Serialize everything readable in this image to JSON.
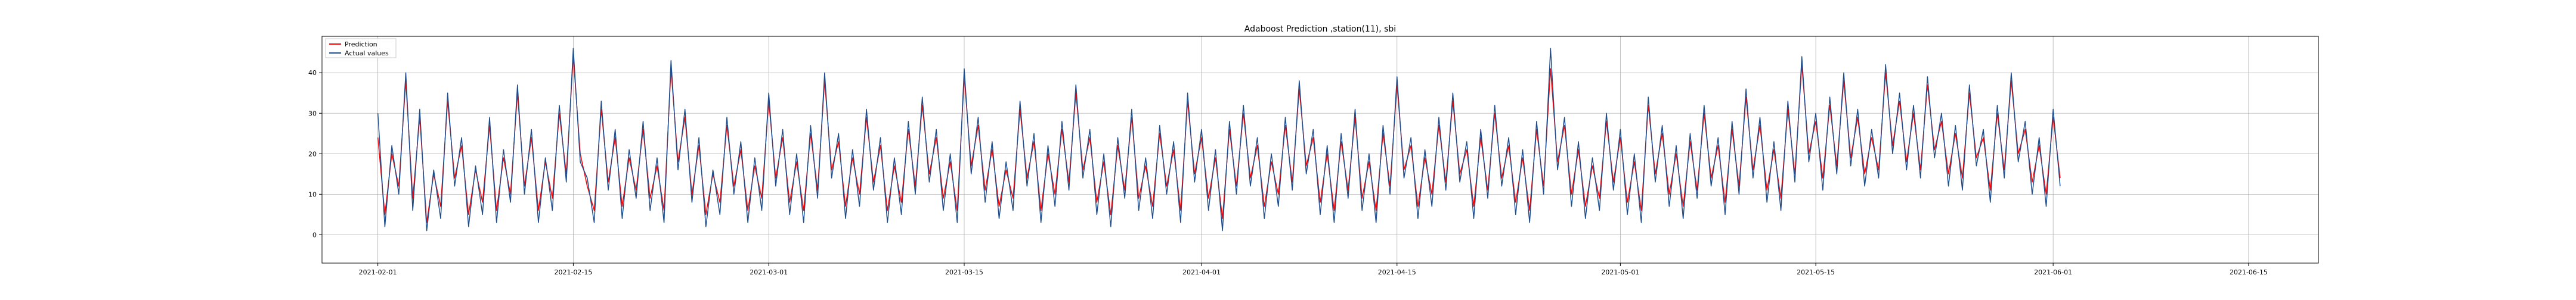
{
  "chart_data": {
    "type": "line",
    "title": "Adaboost Prediction ,station(11), sbi",
    "xlabel": "",
    "ylabel": "",
    "xlim": [
      "2021-01-28",
      "2021-06-20"
    ],
    "ylim": [
      -7,
      49
    ],
    "x_ticks": [
      "2021-02-01",
      "2021-02-15",
      "2021-03-01",
      "2021-03-15",
      "2021-04-01",
      "2021-04-15",
      "2021-05-01",
      "2021-05-15",
      "2021-06-01",
      "2021-06-15"
    ],
    "y_ticks": [
      0,
      10,
      20,
      30,
      40
    ],
    "grid": true,
    "legend_position": "top-left",
    "x_start": "2021-02-01",
    "x_step_days": 0.5,
    "series": [
      {
        "name": "Prediction",
        "color": "#ff0000",
        "values": [
          24,
          5,
          20,
          12,
          38,
          9,
          29,
          3,
          15,
          7,
          33,
          14,
          22,
          5,
          16,
          8,
          27,
          6,
          19,
          10,
          35,
          12,
          24,
          6,
          18,
          9,
          30,
          15,
          44,
          20,
          12,
          6,
          31,
          13,
          24,
          7,
          19,
          11,
          26,
          9,
          17,
          6,
          41,
          18,
          29,
          10,
          22,
          5,
          15,
          8,
          27,
          12,
          21,
          6,
          17,
          9,
          33,
          14,
          24,
          8,
          18,
          6,
          25,
          11,
          38,
          16,
          23,
          7,
          19,
          10,
          29,
          13,
          22,
          6,
          17,
          8,
          26,
          12,
          32,
          15,
          24,
          9,
          18,
          6,
          39,
          17,
          27,
          11,
          21,
          7,
          16,
          9,
          31,
          14,
          23,
          6,
          20,
          10,
          26,
          13,
          35,
          16,
          24,
          8,
          18,
          5,
          22,
          11,
          29,
          9,
          17,
          7,
          25,
          12,
          21,
          6,
          33,
          15,
          24,
          9,
          19,
          4,
          26,
          12,
          30,
          14,
          22,
          7,
          18,
          10,
          27,
          13,
          36,
          17,
          24,
          8,
          20,
          6,
          23,
          11,
          29,
          9,
          18,
          6,
          25,
          12,
          37,
          16,
          22,
          7,
          19,
          10,
          27,
          13,
          33,
          15,
          21,
          7,
          24,
          11,
          30,
          14,
          22,
          8,
          19,
          6,
          26,
          12,
          41,
          18,
          27,
          10,
          21,
          7,
          17,
          9,
          28,
          13,
          24,
          8,
          18,
          6,
          32,
          15,
          25,
          10,
          20,
          7,
          23,
          11,
          30,
          14,
          22,
          8,
          26,
          12,
          34,
          16,
          27,
          11,
          21,
          9,
          31,
          15,
          42,
          20,
          28,
          14,
          32,
          17,
          38,
          19,
          29,
          15,
          24,
          16,
          40,
          22,
          33,
          18,
          30,
          16,
          37,
          21,
          28,
          15,
          25,
          14,
          35,
          19,
          24,
          11,
          30,
          16,
          38,
          20,
          26,
          13,
          22,
          10,
          29,
          14
        ],
        "data_labels": []
      },
      {
        "name": "Actual values",
        "color": "#1f4e8c",
        "values": [
          30,
          2,
          22,
          10,
          40,
          6,
          31,
          1,
          16,
          4,
          35,
          12,
          24,
          2,
          17,
          5,
          29,
          3,
          21,
          8,
          37,
          10,
          26,
          3,
          19,
          6,
          32,
          13,
          46,
          18,
          14,
          3,
          33,
          11,
          26,
          4,
          21,
          9,
          28,
          6,
          19,
          3,
          43,
          16,
          31,
          8,
          24,
          2,
          16,
          5,
          29,
          10,
          23,
          3,
          19,
          6,
          35,
          12,
          26,
          5,
          20,
          3,
          27,
          9,
          40,
          14,
          25,
          4,
          21,
          7,
          31,
          11,
          24,
          3,
          19,
          5,
          28,
          10,
          34,
          13,
          26,
          6,
          20,
          3,
          41,
          15,
          29,
          8,
          23,
          4,
          18,
          6,
          33,
          12,
          25,
          3,
          22,
          7,
          28,
          11,
          37,
          14,
          26,
          5,
          20,
          2,
          24,
          9,
          31,
          6,
          19,
          4,
          27,
          10,
          23,
          3,
          35,
          13,
          26,
          6,
          21,
          1,
          28,
          10,
          32,
          12,
          24,
          4,
          20,
          7,
          29,
          11,
          38,
          15,
          26,
          5,
          22,
          3,
          25,
          9,
          31,
          6,
          20,
          3,
          27,
          10,
          39,
          14,
          24,
          4,
          21,
          7,
          29,
          11,
          35,
          13,
          23,
          4,
          26,
          9,
          32,
          12,
          24,
          5,
          21,
          3,
          28,
          10,
          46,
          16,
          29,
          7,
          23,
          4,
          19,
          6,
          30,
          11,
          26,
          5,
          20,
          3,
          34,
          13,
          27,
          7,
          22,
          4,
          25,
          9,
          32,
          12,
          24,
          5,
          28,
          10,
          36,
          14,
          29,
          8,
          23,
          6,
          33,
          13,
          44,
          18,
          30,
          11,
          34,
          15,
          40,
          17,
          31,
          12,
          26,
          14,
          42,
          20,
          35,
          16,
          32,
          14,
          39,
          19,
          30,
          12,
          27,
          11,
          37,
          17,
          26,
          8,
          32,
          14,
          40,
          18,
          28,
          10,
          24,
          7,
          31,
          12
        ]
      }
    ]
  }
}
